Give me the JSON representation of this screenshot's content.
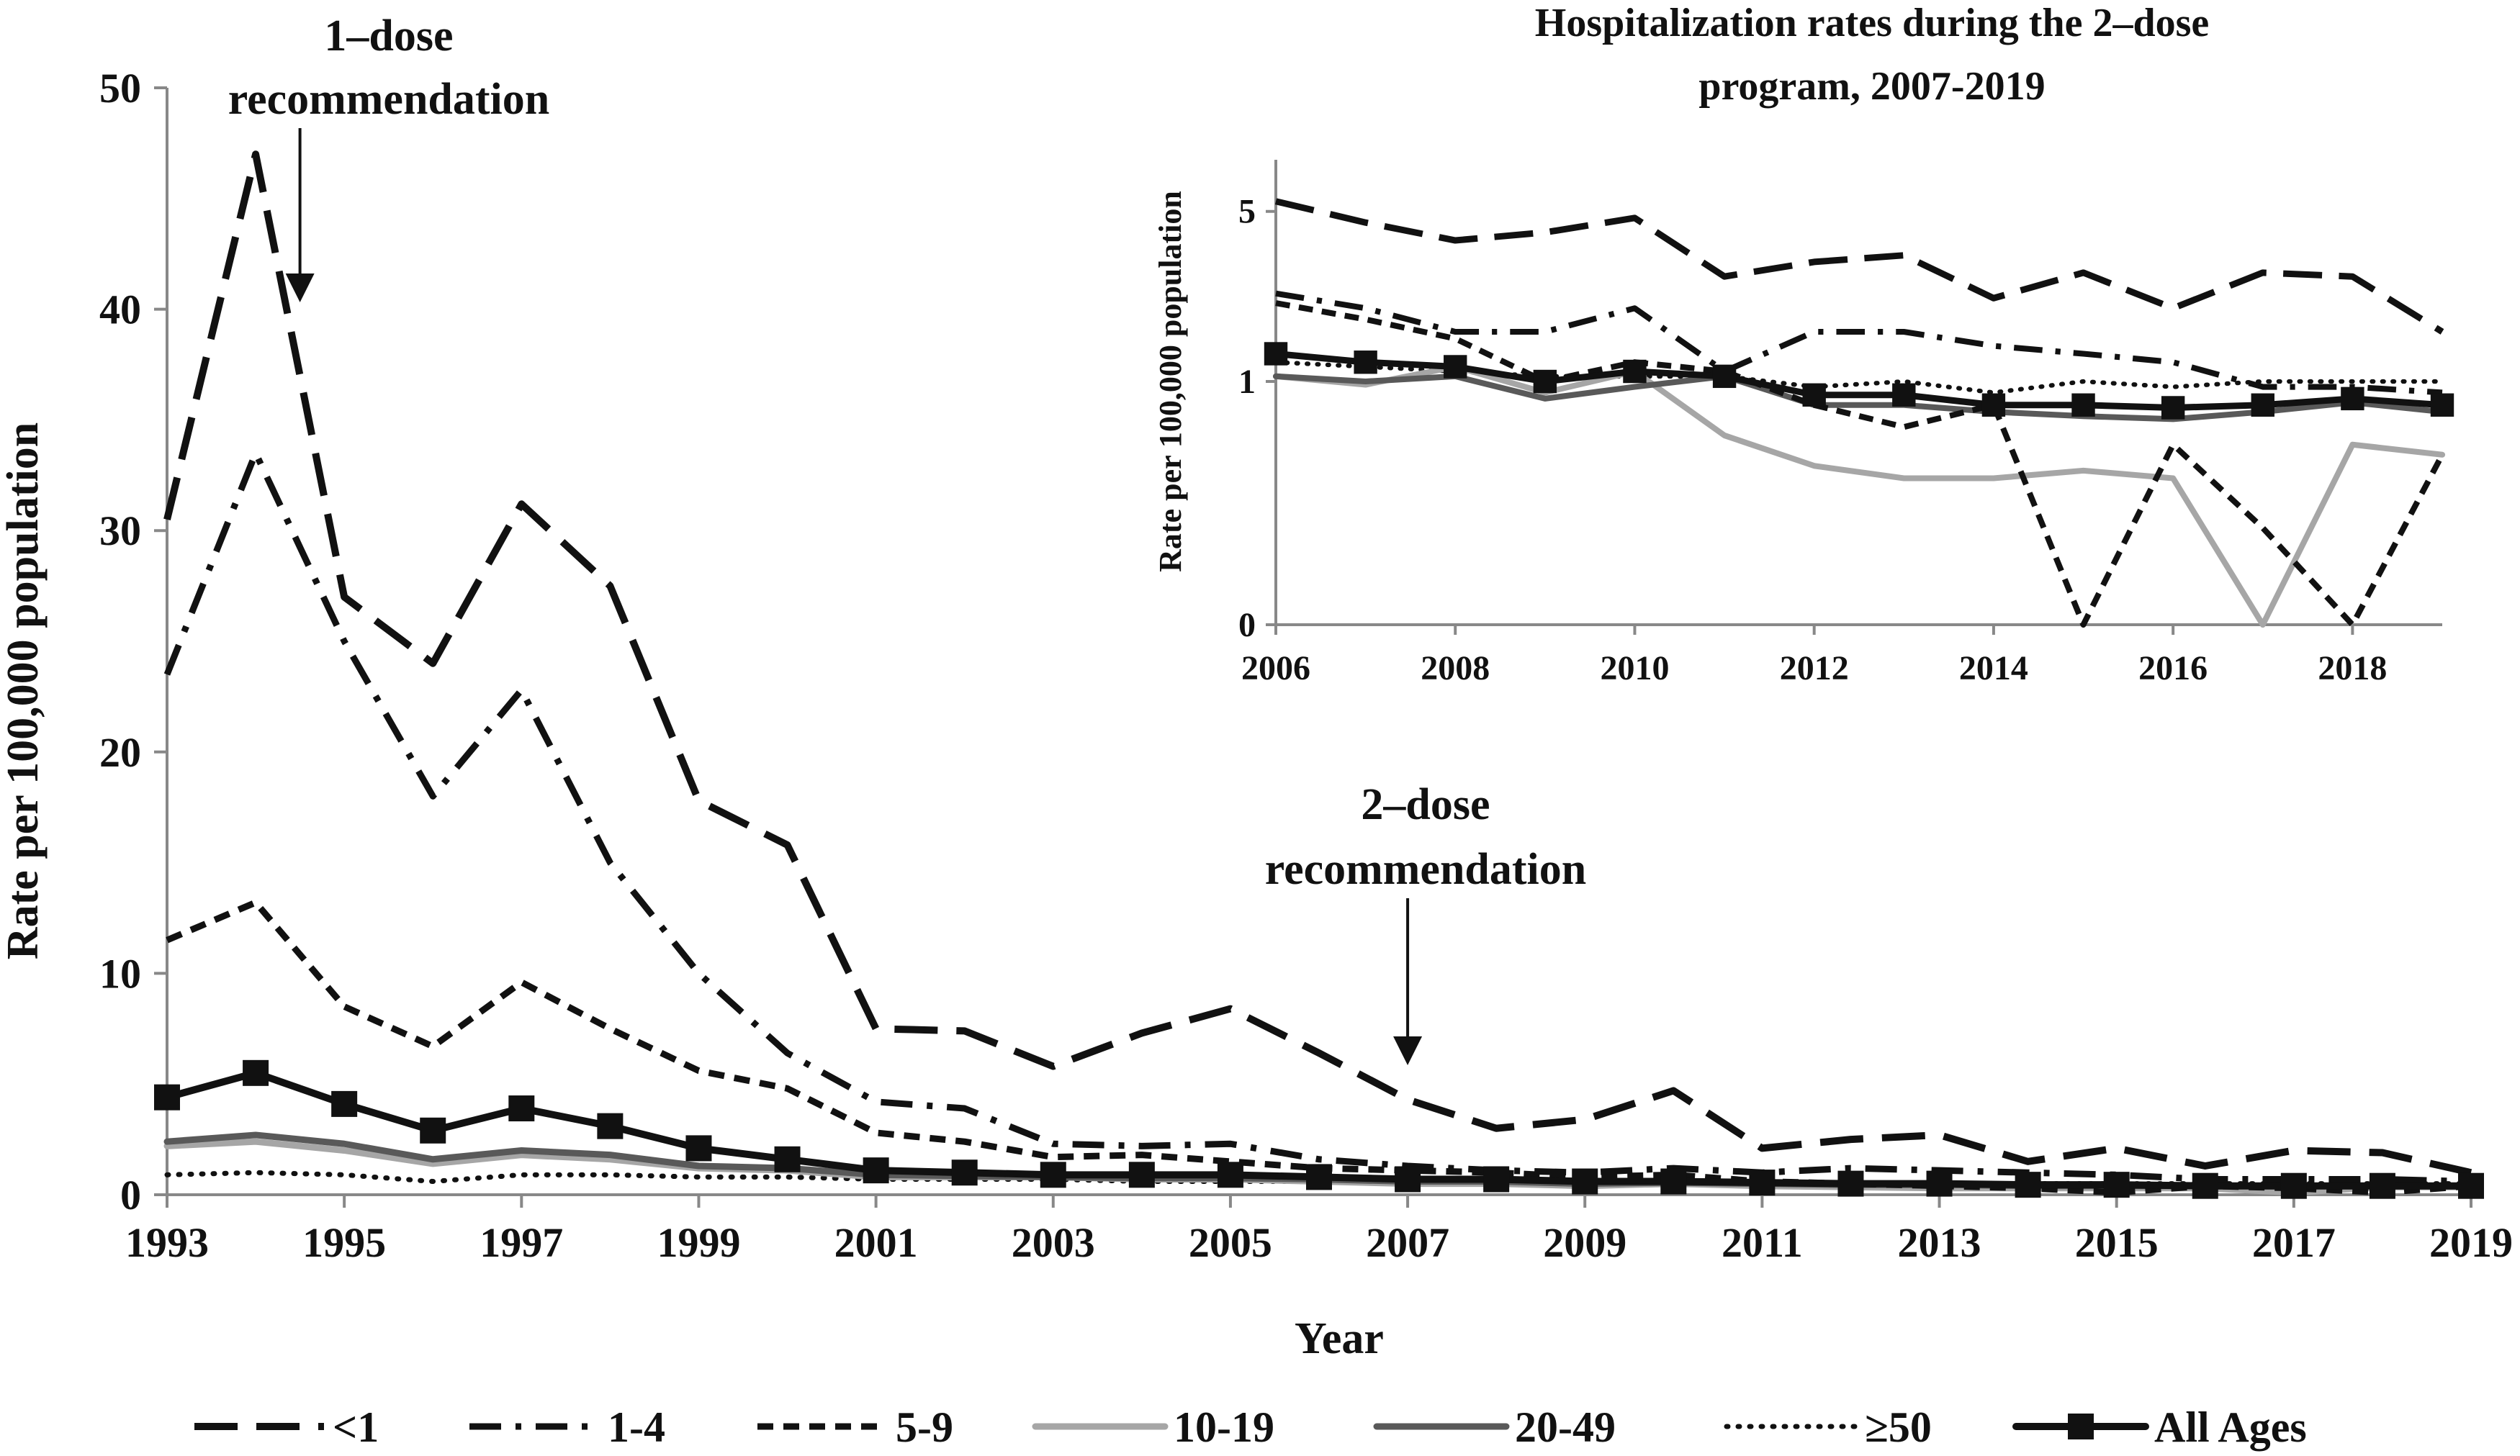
{
  "chart_data": [
    {
      "type": "line",
      "xlabel": "Year",
      "ylabel": "Rate per 100,000 population",
      "ylim": [
        0,
        50
      ],
      "y_ticks": [
        "0",
        "10",
        "20",
        "30",
        "40",
        "50"
      ],
      "x_ticks": [
        "1993",
        "1995",
        "1997",
        "1999",
        "2001",
        "2003",
        "2005",
        "2007",
        "2009",
        "2011",
        "2013",
        "2015",
        "2017",
        "2019"
      ],
      "x": [
        1993,
        1994,
        1995,
        1996,
        1997,
        1998,
        1999,
        2000,
        2001,
        2002,
        2003,
        2004,
        2005,
        2006,
        2007,
        2008,
        2009,
        2010,
        2011,
        2012,
        2013,
        2014,
        2015,
        2016,
        2017,
        2018,
        2019
      ],
      "annotations": [
        {
          "text": "1–dose recommendation",
          "line1": "1–dose",
          "line2": "recommendation",
          "year": 1994.5
        },
        {
          "text": "2–dose recommendation",
          "line1": "2–dose",
          "line2": "recommendation",
          "year": 2007
        }
      ],
      "series": [
        {
          "name": "<1",
          "style": "long-dash",
          "color": "#111111",
          "values": [
            30.5,
            47,
            27,
            24,
            31.2,
            27.5,
            17.8,
            15.8,
            7.5,
            7.4,
            5.8,
            7.3,
            8.4,
            6.4,
            4.3,
            3,
            3.4,
            4.7,
            2.1,
            2.5,
            2.7,
            1.5,
            2.1,
            1.3,
            2,
            1.9,
            1
          ]
        },
        {
          "name": "1-4",
          "style": "dash-dot",
          "color": "#111111",
          "values": [
            23.5,
            33.5,
            25,
            18,
            22.8,
            15,
            10,
            6.4,
            4.2,
            3.9,
            2.3,
            2.2,
            2.3,
            1.6,
            1.3,
            1.1,
            1,
            1.2,
            1,
            1.2,
            1.1,
            1,
            0.9,
            0.7,
            0.7,
            0.7,
            0.6
          ]
        },
        {
          "name": "5-9",
          "style": "short-dash",
          "color": "#111111",
          "values": [
            11.5,
            13.2,
            8.5,
            6.7,
            9.6,
            7.5,
            5.6,
            4.8,
            2.8,
            2.4,
            1.7,
            1.8,
            1.5,
            1.2,
            1.1,
            1,
            0.8,
            0.9,
            0.6,
            0.5,
            0.4,
            0.3,
            0.1,
            0.4,
            0.3,
            0.1,
            0.4
          ]
        },
        {
          "name": "10-19",
          "style": "solid",
          "color": "#a6a6a6",
          "values": [
            2.2,
            2.4,
            2,
            1.4,
            1.8,
            1.6,
            1.2,
            1.1,
            0.8,
            0.8,
            0.8,
            0.7,
            0.7,
            0.6,
            0.5,
            0.5,
            0.4,
            0.5,
            0.4,
            0.35,
            0.3,
            0.3,
            0.3,
            0.3,
            0.1,
            0.35,
            0.35
          ]
        },
        {
          "name": "20-49",
          "style": "solid",
          "color": "#595959",
          "values": [
            2.4,
            2.7,
            2.3,
            1.6,
            2,
            1.8,
            1.3,
            1.2,
            0.9,
            0.85,
            0.8,
            0.75,
            0.75,
            0.7,
            0.6,
            0.6,
            0.5,
            0.55,
            0.5,
            0.45,
            0.45,
            0.4,
            0.4,
            0.4,
            0.4,
            0.4,
            0.4
          ]
        },
        {
          "name": "≥50",
          "style": "dotted",
          "color": "#111111",
          "values": [
            0.9,
            1,
            0.9,
            0.6,
            0.9,
            0.9,
            0.8,
            0.8,
            0.7,
            0.7,
            0.7,
            0.6,
            0.6,
            0.6,
            0.6,
            0.6,
            0.5,
            0.5,
            0.5,
            0.5,
            0.5,
            0.5,
            0.5,
            0.5,
            0.5,
            0.5,
            0.5
          ]
        },
        {
          "name": "All Ages",
          "style": "solid-square",
          "color": "#111111",
          "values": [
            4.4,
            5.5,
            4.1,
            2.9,
            3.9,
            3.1,
            2.1,
            1.6,
            1.1,
            1,
            0.9,
            0.9,
            0.9,
            0.8,
            0.7,
            0.7,
            0.6,
            0.6,
            0.55,
            0.5,
            0.5,
            0.45,
            0.45,
            0.4,
            0.4,
            0.4,
            0.4
          ]
        }
      ]
    },
    {
      "type": "line",
      "title": "Hospitalization rates during the 2–dose program,  2007-2019",
      "title_line1": "Hospitalization rates during the 2–dose",
      "title_line2": "program,  2007-2019",
      "ylabel": "Rate per 100,000 population",
      "y_scale": "log",
      "y_ticks": [
        "0",
        "1",
        "5"
      ],
      "x_ticks": [
        "2006",
        "2008",
        "2010",
        "2012",
        "2014",
        "2016",
        "2018"
      ],
      "x": [
        2006,
        2007,
        2008,
        2009,
        2010,
        2011,
        2012,
        2013,
        2014,
        2015,
        2016,
        2017,
        2018,
        2019
      ],
      "series": [
        {
          "name": "<1",
          "values": [
            5.5,
            4.5,
            3.8,
            4.1,
            4.7,
            2.7,
            3.1,
            3.3,
            2.2,
            2.8,
            2,
            2.8,
            2.7,
            1.6
          ]
        },
        {
          "name": "1-4",
          "values": [
            2.3,
            2,
            1.6,
            1.6,
            2,
            1.1,
            1.6,
            1.6,
            1.4,
            1.3,
            1.2,
            0.95,
            0.95,
            0.9
          ]
        },
        {
          "name": "5-9",
          "values": [
            2.1,
            1.8,
            1.5,
            1,
            1.2,
            1.1,
            0.8,
            0.65,
            0.8,
            0.1,
            0.55,
            0.25,
            0.1,
            0.5
          ]
        },
        {
          "name": "10-19",
          "values": [
            1.05,
            0.97,
            1.15,
            0.9,
            1.1,
            0.6,
            0.45,
            0.4,
            0.4,
            0.43,
            0.4,
            0.1,
            0.55,
            0.5
          ]
        },
        {
          "name": "20-49",
          "values": [
            1.05,
            1,
            1.05,
            0.85,
            0.95,
            1.05,
            0.8,
            0.8,
            0.75,
            0.72,
            0.7,
            0.75,
            0.82,
            0.75
          ]
        },
        {
          "name": "≥50",
          "values": [
            1.2,
            1.15,
            1.1,
            1.05,
            1.05,
            1.05,
            0.95,
            1,
            0.9,
            1,
            0.95,
            1,
            1,
            1
          ]
        },
        {
          "name": "All Ages",
          "values": [
            1.3,
            1.2,
            1.15,
            1,
            1.1,
            1.05,
            0.88,
            0.88,
            0.8,
            0.8,
            0.78,
            0.8,
            0.85,
            0.8
          ]
        }
      ]
    }
  ]
}
